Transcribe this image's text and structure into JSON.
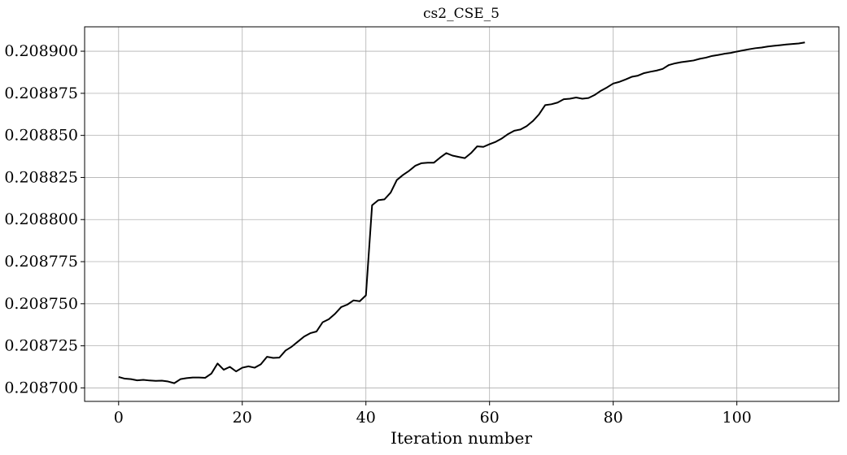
{
  "chart_data": {
    "type": "line",
    "title": "cs2_CSE_5",
    "xlabel": "Iteration number",
    "ylabel": "",
    "xlim": [
      -5.5,
      116.5
    ],
    "ylim": [
      0.208692,
      0.2089145
    ],
    "grid": true,
    "legend": "none",
    "x_ticks": [
      0,
      20,
      40,
      60,
      80,
      100
    ],
    "x_tick_labels": [
      "0",
      "20",
      "40",
      "60",
      "80",
      "100"
    ],
    "y_ticks": [
      0.2087,
      0.208725,
      0.20875,
      0.208775,
      0.2088,
      0.208825,
      0.20885,
      0.208875,
      0.2089
    ],
    "y_tick_labels": [
      "0.208700",
      "0.208725",
      "0.208750",
      "0.208775",
      "0.208800",
      "0.208825",
      "0.208850",
      "0.208875",
      "0.208900"
    ],
    "series": [
      {
        "name": "",
        "color": "#000000",
        "x": [
          0,
          1,
          2,
          3,
          4,
          5,
          6,
          7,
          8,
          9,
          10,
          11,
          12,
          13,
          14,
          15,
          16,
          17,
          18,
          19,
          20,
          21,
          22,
          23,
          24,
          25,
          26,
          27,
          28,
          29,
          30,
          31,
          32,
          33,
          34,
          35,
          36,
          37,
          38,
          39,
          40,
          41,
          42,
          43,
          44,
          45,
          46,
          47,
          48,
          49,
          50,
          51,
          52,
          53,
          54,
          55,
          56,
          57,
          58,
          59,
          60,
          61,
          62,
          63,
          64,
          65,
          66,
          67,
          68,
          69,
          70,
          71,
          72,
          73,
          74,
          75,
          76,
          77,
          78,
          79,
          80,
          81,
          82,
          83,
          84,
          85,
          86,
          87,
          88,
          89,
          90,
          91,
          92,
          93,
          94,
          95,
          96,
          97,
          98,
          99,
          100,
          101,
          102,
          103,
          104,
          105,
          106,
          107,
          108,
          109,
          110,
          111
        ],
        "y": [
          0.2087065,
          0.2087055,
          0.2087052,
          0.2087045,
          0.2087048,
          0.2087044,
          0.2087042,
          0.2087043,
          0.2087038,
          0.2087028,
          0.2087052,
          0.2087058,
          0.2087062,
          0.2087062,
          0.208706,
          0.2087085,
          0.2087145,
          0.2087108,
          0.2087125,
          0.2087098,
          0.208712,
          0.2087128,
          0.208712,
          0.208714,
          0.2087185,
          0.2087178,
          0.208718,
          0.2087222,
          0.2087245,
          0.2087275,
          0.2087305,
          0.2087325,
          0.2087335,
          0.208739,
          0.2087408,
          0.208744,
          0.208748,
          0.2087495,
          0.208752,
          0.2087515,
          0.208755,
          0.2088085,
          0.2088115,
          0.208812,
          0.208816,
          0.2088235,
          0.2088265,
          0.208829,
          0.208832,
          0.2088335,
          0.2088338,
          0.2088338,
          0.2088368,
          0.2088395,
          0.208838,
          0.2088372,
          0.2088365,
          0.2088395,
          0.2088435,
          0.2088432,
          0.2088448,
          0.2088462,
          0.2088482,
          0.2088508,
          0.2088528,
          0.2088535,
          0.2088555,
          0.2088585,
          0.2088625,
          0.208868,
          0.2088685,
          0.2088695,
          0.2088715,
          0.2088718,
          0.2088725,
          0.2088718,
          0.2088722,
          0.208874,
          0.2088765,
          0.2088785,
          0.2088808,
          0.2088818,
          0.2088832,
          0.2088848,
          0.2088855,
          0.208887,
          0.2088878,
          0.2088885,
          0.2088895,
          0.2088918,
          0.2088928,
          0.2088935,
          0.208894,
          0.2088945,
          0.2088955,
          0.2088962,
          0.2088972,
          0.2088978,
          0.2088985,
          0.208899,
          0.2088998,
          0.2089005,
          0.2089012,
          0.2089018,
          0.2089022,
          0.2089028,
          0.2089032,
          0.2089036,
          0.208904,
          0.2089043,
          0.2089046,
          0.2089052
        ]
      }
    ]
  }
}
